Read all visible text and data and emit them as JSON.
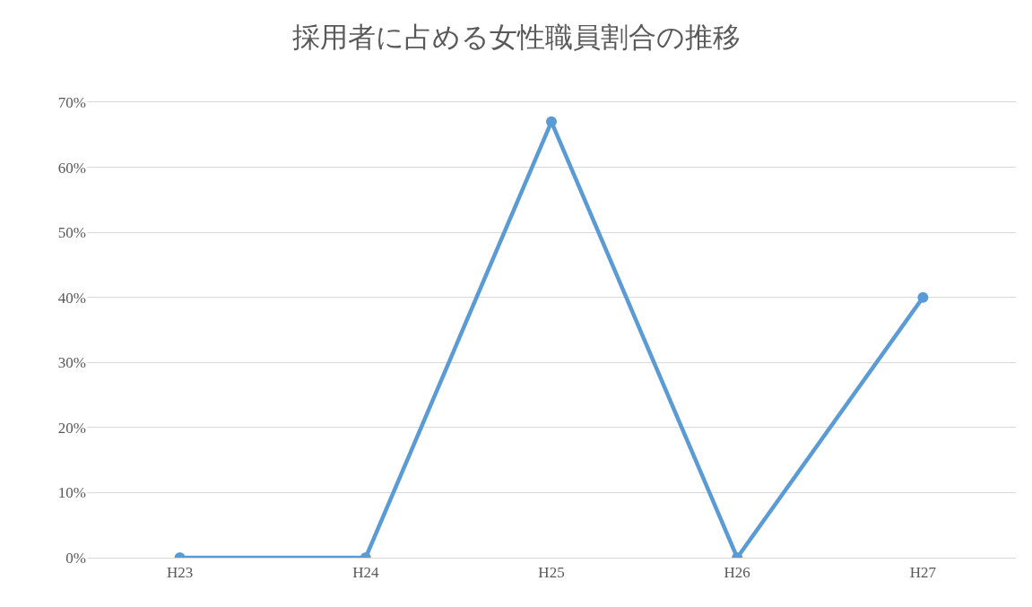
{
  "chart_data": {
    "type": "line",
    "title": "採用者に占める女性職員割合の推移",
    "categories": [
      "H23",
      "H24",
      "H25",
      "H26",
      "H27"
    ],
    "values": [
      0,
      0,
      67,
      0,
      40
    ],
    "color": "#5b9bd5",
    "ylim": [
      0,
      70
    ],
    "yticks": [
      {
        "value": 0,
        "label": "0%"
      },
      {
        "value": 10,
        "label": "10%"
      },
      {
        "value": 20,
        "label": "20%"
      },
      {
        "value": 30,
        "label": "30%"
      },
      {
        "value": 40,
        "label": "40%"
      },
      {
        "value": 50,
        "label": "50%"
      },
      {
        "value": 60,
        "label": "60%"
      },
      {
        "value": 70,
        "label": "70%"
      }
    ],
    "grid": "y",
    "marker": "circle",
    "line_style": "solid",
    "legend": false
  }
}
